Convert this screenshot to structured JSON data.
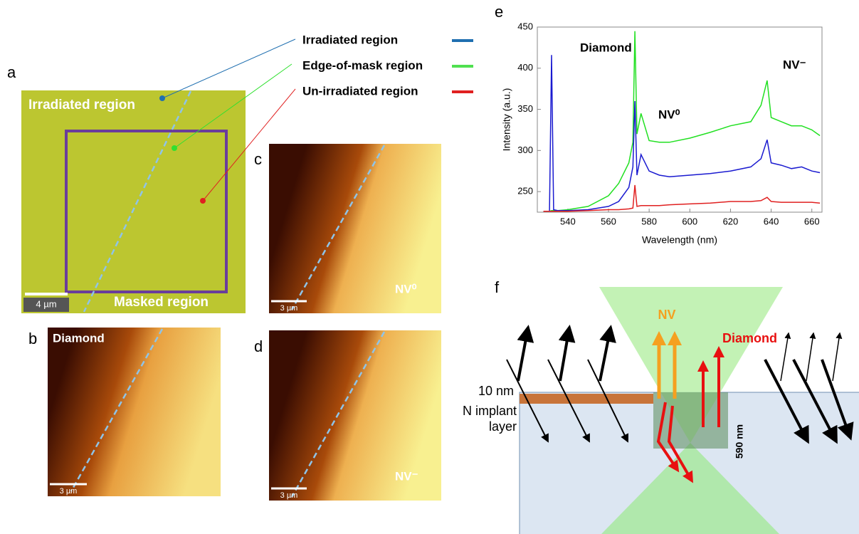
{
  "panels": {
    "a": "a",
    "b": "b",
    "c": "c",
    "d": "d",
    "e": "e",
    "f": "f"
  },
  "legend": [
    "Irradiated region",
    "Edge-of-mask region",
    "Un-irradiated region"
  ],
  "panel_a": {
    "top_label": "Irradiated region",
    "bottom_label": "Masked region",
    "scale": "4 µm"
  },
  "panel_b": {
    "label": "Diamond",
    "scale": "3 µm"
  },
  "panel_c": {
    "label": "NV⁰",
    "scale": "3 µm"
  },
  "panel_d": {
    "label": "NV⁻",
    "scale": "3 µm"
  },
  "panel_f": {
    "nv": "NV",
    "diamond": "Diamond",
    "thickness": "10 nm",
    "layer": "N implant layer",
    "depth": "590 nm"
  },
  "chart_data": {
    "type": "line",
    "x_label": "Wavelength (nm)",
    "y_label": "Intensity (a.u.)",
    "annotations": [
      "Diamond",
      "NV⁰",
      "NV⁻"
    ],
    "xlim": [
      525,
      665
    ],
    "ylim": [
      225,
      450
    ],
    "xticks": [
      540,
      560,
      580,
      600,
      620,
      640,
      660
    ],
    "yticks": [
      250,
      300,
      350,
      400,
      450
    ],
    "x": [
      528,
      531,
      532,
      533,
      535,
      540,
      550,
      560,
      565,
      570,
      572,
      573,
      574,
      576,
      580,
      585,
      590,
      600,
      610,
      620,
      630,
      635,
      638,
      640,
      645,
      650,
      655,
      660,
      664
    ],
    "series": [
      {
        "color": "#22e022",
        "values": [
          226,
          226,
          227,
          227,
          227,
          228,
          232,
          245,
          260,
          285,
          310,
          445,
          320,
          345,
          312,
          310,
          310,
          315,
          322,
          330,
          335,
          355,
          385,
          340,
          335,
          330,
          330,
          325,
          318
        ]
      },
      {
        "color": "#1a1ad0",
        "values": [
          226,
          226,
          416,
          228,
          227,
          227,
          228,
          232,
          238,
          255,
          280,
          360,
          270,
          295,
          275,
          270,
          268,
          270,
          272,
          275,
          280,
          290,
          313,
          285,
          282,
          278,
          280,
          275,
          273
        ]
      },
      {
        "color": "#e02020",
        "values": [
          226,
          226,
          226,
          226,
          226,
          226,
          227,
          228,
          228,
          229,
          230,
          258,
          232,
          233,
          233,
          233,
          234,
          235,
          236,
          238,
          238,
          239,
          243,
          238,
          237,
          237,
          237,
          237,
          236
        ]
      }
    ]
  }
}
